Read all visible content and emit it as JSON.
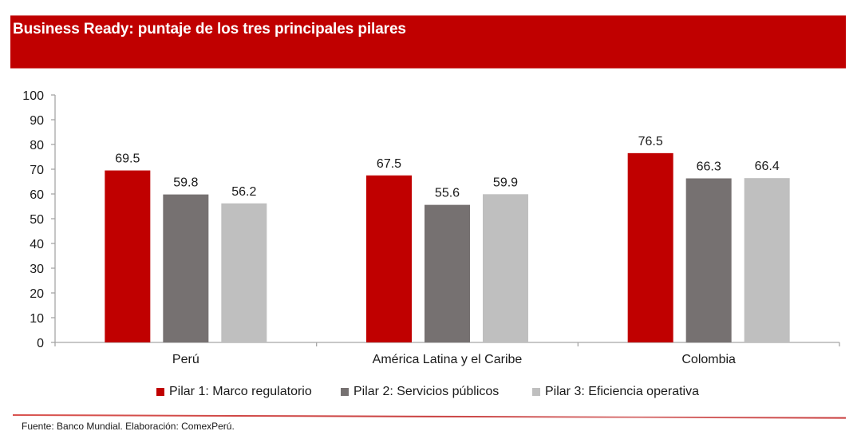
{
  "header": {
    "title": "Business Ready: puntaje de los tres principales pilares"
  },
  "chart_data": {
    "type": "bar",
    "title": "Business Ready: puntaje de los tres principales pilares",
    "xlabel": "",
    "ylabel": "",
    "categories": [
      "Perú",
      "América Latina y el Caribe",
      "Colombia"
    ],
    "series": [
      {
        "name": "Pilar 1: Marco regulatorio",
        "color": "#c00000",
        "values": [
          69.5,
          67.5,
          76.5
        ]
      },
      {
        "name": "Pilar 2: Servicios públicos",
        "color": "#767171",
        "values": [
          59.8,
          55.6,
          66.3
        ]
      },
      {
        "name": "Pilar 3: Eficiencia operativa",
        "color": "#bfbfbf",
        "values": [
          56.2,
          59.9,
          66.4
        ]
      }
    ],
    "ylim": [
      0,
      100
    ],
    "yticks": [
      0,
      10,
      20,
      30,
      40,
      50,
      60,
      70,
      80,
      90,
      100
    ],
    "grid": false,
    "data_labels": true,
    "legend_position": "bottom"
  },
  "footer": {
    "source": "Fuente: Banco Mundial. Elaboración: ComexPerú."
  }
}
